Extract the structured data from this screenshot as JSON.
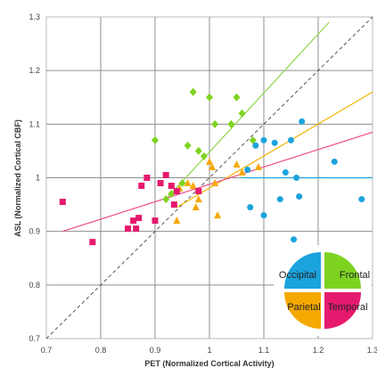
{
  "chart_data": {
    "type": "scatter",
    "xlabel": "PET (Normalized Cortical Activity)",
    "ylabel": "ASL (Normalized Cortical CBF)",
    "xlim": [
      0.7,
      1.3
    ],
    "ylim": [
      0.7,
      1.3
    ],
    "x_ticks": [
      "0.7",
      "0.8",
      "0.9",
      "1",
      "1.1",
      "1.2",
      "1.3"
    ],
    "y_ticks": [
      "0.7",
      "0.8",
      "0.9",
      "1",
      "1.1",
      "1.2",
      "1.3"
    ],
    "grid": true,
    "identity_line": {
      "style": "dashed",
      "color": "#555555"
    },
    "series": [
      {
        "name": "Frontal",
        "marker": "diamond",
        "color": "#7ed321",
        "points": [
          [
            0.9,
            1.07
          ],
          [
            0.92,
            0.96
          ],
          [
            0.93,
            0.97
          ],
          [
            0.95,
            0.99
          ],
          [
            0.96,
            1.06
          ],
          [
            0.97,
            1.16
          ],
          [
            0.98,
            1.05
          ],
          [
            0.99,
            1.04
          ],
          [
            1.0,
            1.15
          ],
          [
            1.01,
            1.1
          ],
          [
            1.04,
            1.1
          ],
          [
            1.05,
            1.15
          ],
          [
            1.06,
            1.12
          ],
          [
            1.08,
            1.07
          ]
        ],
        "fit_line": {
          "x": [
            0.92,
            1.22
          ],
          "y": [
            0.96,
            1.29
          ],
          "color": "#8fd34a"
        }
      },
      {
        "name": "Occipital",
        "marker": "circle",
        "color": "#1ba3dd",
        "points": [
          [
            1.07,
            1.015
          ],
          [
            1.075,
            0.945
          ],
          [
            1.085,
            1.06
          ],
          [
            1.1,
            0.93
          ],
          [
            1.1,
            1.07
          ],
          [
            1.12,
            1.065
          ],
          [
            1.13,
            0.96
          ],
          [
            1.14,
            1.01
          ],
          [
            1.15,
            1.07
          ],
          [
            1.155,
            0.885
          ],
          [
            1.16,
            1.0
          ],
          [
            1.165,
            0.965
          ],
          [
            1.17,
            1.105
          ],
          [
            1.23,
            1.03
          ],
          [
            1.28,
            0.96
          ]
        ],
        "fit_line": {
          "x": [
            1.06,
            1.3
          ],
          "y": [
            1.0,
            1.0
          ],
          "color": "#1ba3dd"
        }
      },
      {
        "name": "Parietal",
        "marker": "triangle",
        "color": "#f5a800",
        "points": [
          [
            0.94,
            0.92
          ],
          [
            0.945,
            0.98
          ],
          [
            0.96,
            0.99
          ],
          [
            0.97,
            0.985
          ],
          [
            0.975,
            0.945
          ],
          [
            0.98,
            0.96
          ],
          [
            1.0,
            1.03
          ],
          [
            1.005,
            1.02
          ],
          [
            1.01,
            0.99
          ],
          [
            1.015,
            0.93
          ],
          [
            1.05,
            1.025
          ],
          [
            1.06,
            1.01
          ],
          [
            1.09,
            1.02
          ]
        ],
        "fit_line": {
          "x": [
            0.94,
            1.3
          ],
          "y": [
            0.945,
            1.16
          ],
          "color": "#f5b400"
        }
      },
      {
        "name": "Temporal",
        "marker": "square",
        "color": "#e5196e",
        "points": [
          [
            0.73,
            0.955
          ],
          [
            0.785,
            0.88
          ],
          [
            0.85,
            0.905
          ],
          [
            0.86,
            0.92
          ],
          [
            0.865,
            0.905
          ],
          [
            0.87,
            0.925
          ],
          [
            0.875,
            0.985
          ],
          [
            0.885,
            1.0
          ],
          [
            0.9,
            0.92
          ],
          [
            0.91,
            0.99
          ],
          [
            0.92,
            1.005
          ],
          [
            0.93,
            0.985
          ],
          [
            0.935,
            0.95
          ],
          [
            0.94,
            0.975
          ],
          [
            0.98,
            0.975
          ]
        ],
        "fit_line": {
          "x": [
            0.73,
            1.3
          ],
          "y": [
            0.9,
            1.085
          ],
          "color": "#ee4a8f"
        }
      }
    ],
    "legend": {
      "type": "pie",
      "placement": "bottom-right",
      "quadrants": [
        {
          "name": "Frontal",
          "color": "#7ed321",
          "position": "top-right"
        },
        {
          "name": "Temporal",
          "color": "#e5196e",
          "position": "bottom-right"
        },
        {
          "name": "Parietal",
          "color": "#f5a800",
          "position": "bottom-left"
        },
        {
          "name": "Occipital",
          "color": "#1ba3dd",
          "position": "top-left"
        }
      ]
    }
  }
}
